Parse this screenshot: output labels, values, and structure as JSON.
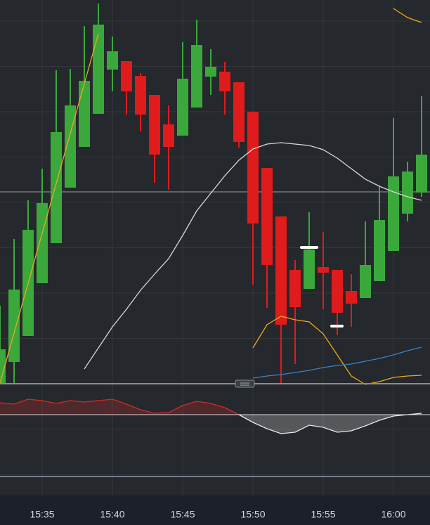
{
  "chart_data": [
    {
      "type": "candlestick",
      "categories": [
        null,
        null,
        null,
        "15:35",
        null,
        null,
        null,
        null,
        "15:40",
        null,
        null,
        null,
        null,
        "15:45",
        null,
        null,
        null,
        null,
        "15:50",
        null,
        null,
        null,
        null,
        "15:55",
        null,
        null,
        null,
        null,
        "16:00",
        null,
        null
      ],
      "open": [
        5,
        35,
        72,
        147,
        204,
        283,
        341,
        388,
        451,
        463,
        442,
        415,
        373,
        357,
        397,
        441,
        448,
        433,
        391,
        311,
        242,
        166,
        139,
        170,
        166,
        136,
        126,
        150,
        193,
        246,
        276
      ],
      "high": [
        115,
        210,
        265,
        310,
        450,
        452,
        513,
        545,
        498,
        463,
        446,
        415,
        400,
        490,
        522,
        480,
        462,
        433,
        391,
        311,
        242,
        180,
        248,
        220,
        166,
        160,
        235,
        285,
        382,
        320,
        413
      ],
      "low": [
        5,
        5,
        72,
        147,
        204,
        283,
        341,
        388,
        420,
        387,
        363,
        290,
        280,
        357,
        397,
        415,
        387,
        340,
        145,
        112,
        5,
        32,
        139,
        110,
        73,
        85,
        126,
        150,
        193,
        235,
        270
      ],
      "close": [
        53,
        138,
        223,
        261,
        362,
        400,
        435,
        515,
        477,
        420,
        387,
        330,
        341,
        438,
        486,
        455,
        420,
        348,
        232,
        173,
        88,
        113,
        195,
        162,
        105,
        118,
        173,
        237,
        299,
        306,
        330
      ],
      "up_color": "#3ba83b",
      "down_color": "#e01b1b",
      "series": [
        {
          "color": "#d8d8d8",
          "values": [
            null,
            null,
            null,
            null,
            null,
            null,
            25,
            55,
            85,
            110,
            137,
            160,
            182,
            215,
            250,
            275,
            300,
            322,
            338,
            345,
            347,
            345,
            343,
            337,
            325,
            310,
            295,
            285,
            277,
            270,
            265
          ]
        },
        {
          "color": "#f0a81c",
          "values": [
            5,
            76,
            147,
            218,
            289,
            360,
            431,
            502,
            null,
            null,
            null,
            null,
            null,
            null,
            null,
            null,
            null,
            null,
            null,
            null,
            null,
            null,
            null,
            null,
            null,
            null,
            null,
            null,
            null,
            null,
            null
          ]
        },
        {
          "color": "#f0a81c",
          "values": [
            null,
            null,
            null,
            null,
            null,
            null,
            null,
            null,
            null,
            null,
            null,
            null,
            null,
            null,
            null,
            null,
            null,
            null,
            55,
            88,
            100,
            95,
            92,
            75,
            45,
            15,
            3,
            7,
            13,
            15,
            16
          ]
        },
        {
          "color": "#f0a81c",
          "values": [
            null,
            null,
            null,
            null,
            null,
            null,
            null,
            null,
            null,
            null,
            null,
            null,
            null,
            null,
            null,
            null,
            null,
            null,
            null,
            null,
            null,
            null,
            null,
            null,
            null,
            null,
            null,
            null,
            538,
            525,
            518
          ]
        },
        {
          "color": "#3b82c8",
          "values": [
            null,
            null,
            null,
            null,
            null,
            null,
            null,
            null,
            null,
            null,
            null,
            null,
            null,
            null,
            null,
            null,
            null,
            null,
            12,
            15,
            17,
            20,
            23,
            27,
            30,
            32,
            36,
            40,
            45,
            51,
            56
          ]
        }
      ],
      "ylim": [
        0,
        550
      ]
    },
    {
      "type": "line",
      "series": [
        {
          "color": "#d42a2a",
          "values": [
            17,
            15,
            22,
            20,
            16,
            20,
            18,
            20,
            22,
            15,
            7,
            2,
            3,
            13,
            19,
            16,
            10,
            0,
            null,
            null,
            null,
            null,
            null,
            null,
            null,
            null,
            null,
            null,
            null,
            null,
            null
          ]
        },
        {
          "color": "#e8e8e8",
          "values": [
            null,
            null,
            null,
            null,
            null,
            null,
            null,
            null,
            null,
            null,
            null,
            null,
            null,
            null,
            null,
            null,
            null,
            0,
            -11,
            -20,
            -27,
            -25,
            -15,
            -18,
            -25,
            -23,
            -16,
            -8,
            -2,
            0,
            2
          ]
        }
      ],
      "ylim": [
        -50,
        50
      ]
    }
  ]
}
